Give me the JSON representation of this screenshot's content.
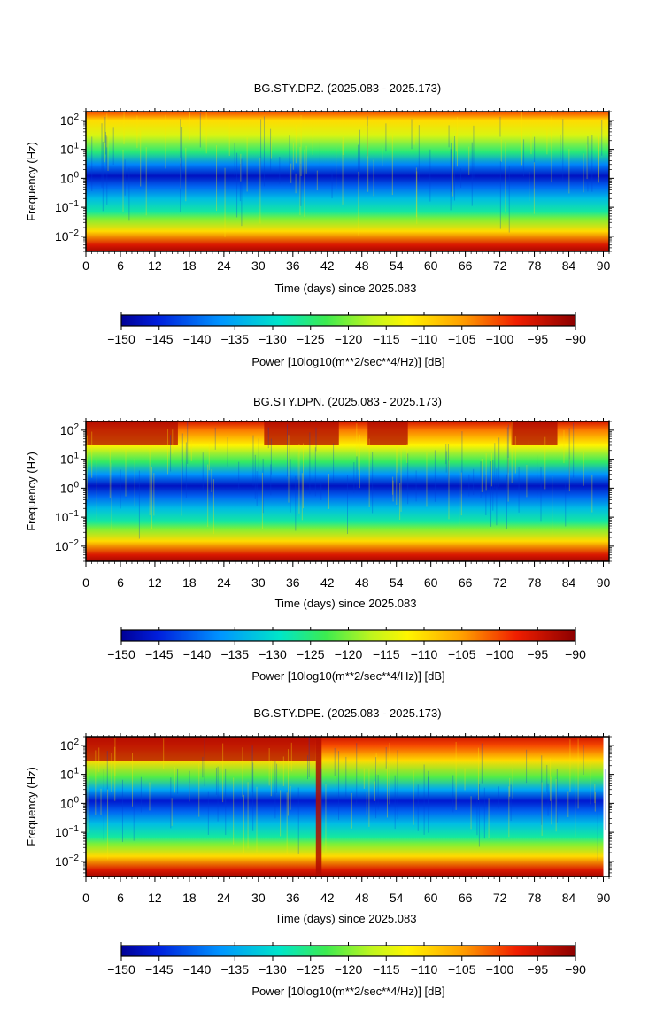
{
  "chart_data": [
    {
      "type": "heatmap",
      "title": "BG.STY.DPZ. (2025.083 - 2025.173)",
      "xlabel": "Time (days) since 2025.083",
      "ylabel": "Frequency (Hz)",
      "x_ticks": [
        "0",
        "6",
        "12",
        "18",
        "24",
        "30",
        "36",
        "42",
        "48",
        "54",
        "60",
        "66",
        "72",
        "78",
        "84",
        "90"
      ],
      "xlim": [
        0,
        91
      ],
      "y_scale": "log",
      "ylim": [
        0.003,
        200
      ],
      "y_tick_labels": [
        {
          "base": "10",
          "exp": "2"
        },
        {
          "base": "10",
          "exp": "1"
        },
        {
          "base": "10",
          "exp": "0"
        },
        {
          "base": "10",
          "exp": "−1"
        },
        {
          "base": "10",
          "exp": "−2"
        }
      ],
      "y_tick_values": [
        100,
        10,
        1,
        0.1,
        0.01
      ],
      "colorbar": {
        "label": "Power [10log10(m**2/sec**4/Hz)] [dB]",
        "range": [
          -150,
          -90
        ],
        "tick_labels": [
          "−150",
          "−145",
          "−140",
          "−135",
          "−130",
          "−125",
          "−120",
          "−115",
          "−110",
          "−105",
          "−100",
          "−95",
          "−90"
        ]
      },
      "psd_profile_db": [
        {
          "hz": 200,
          "db": -100
        },
        {
          "hz": 100,
          "db": -110
        },
        {
          "hz": 30,
          "db": -115
        },
        {
          "hz": 8,
          "db": -125
        },
        {
          "hz": 3,
          "db": -138
        },
        {
          "hz": 1.2,
          "db": -147
        },
        {
          "hz": 0.5,
          "db": -140
        },
        {
          "hz": 0.2,
          "db": -133
        },
        {
          "hz": 0.07,
          "db": -127
        },
        {
          "hz": 0.04,
          "db": -120
        },
        {
          "hz": 0.015,
          "db": -110
        },
        {
          "hz": 0.005,
          "db": -96
        },
        {
          "hz": 0.003,
          "db": -92
        }
      ],
      "high_noise_day_ranges": []
    },
    {
      "type": "heatmap",
      "title": "BG.STY.DPN. (2025.083 - 2025.173)",
      "xlabel": "Time (days) since 2025.083",
      "ylabel": "Frequency (Hz)",
      "x_ticks": [
        "0",
        "6",
        "12",
        "18",
        "24",
        "30",
        "36",
        "42",
        "48",
        "54",
        "60",
        "66",
        "72",
        "78",
        "84",
        "90"
      ],
      "xlim": [
        0,
        91
      ],
      "y_scale": "log",
      "ylim": [
        0.003,
        200
      ],
      "y_tick_labels": [
        {
          "base": "10",
          "exp": "2"
        },
        {
          "base": "10",
          "exp": "1"
        },
        {
          "base": "10",
          "exp": "0"
        },
        {
          "base": "10",
          "exp": "−1"
        },
        {
          "base": "10",
          "exp": "−2"
        }
      ],
      "y_tick_values": [
        100,
        10,
        1,
        0.1,
        0.01
      ],
      "colorbar": {
        "label": "Power [10log10(m**2/sec**4/Hz)] [dB]",
        "range": [
          -150,
          -90
        ],
        "tick_labels": [
          "−150",
          "−145",
          "−140",
          "−135",
          "−130",
          "−125",
          "−120",
          "−115",
          "−110",
          "−105",
          "−100",
          "−95",
          "−90"
        ]
      },
      "psd_profile_db": [
        {
          "hz": 200,
          "db": -96
        },
        {
          "hz": 100,
          "db": -103
        },
        {
          "hz": 30,
          "db": -112
        },
        {
          "hz": 8,
          "db": -124
        },
        {
          "hz": 3,
          "db": -137
        },
        {
          "hz": 1.2,
          "db": -147
        },
        {
          "hz": 0.5,
          "db": -140
        },
        {
          "hz": 0.2,
          "db": -133
        },
        {
          "hz": 0.07,
          "db": -127
        },
        {
          "hz": 0.04,
          "db": -120
        },
        {
          "hz": 0.015,
          "db": -110
        },
        {
          "hz": 0.005,
          "db": -96
        },
        {
          "hz": 0.003,
          "db": -92
        }
      ],
      "high_noise_day_ranges": [
        [
          0,
          16
        ],
        [
          31,
          44
        ],
        [
          49,
          56
        ],
        [
          74,
          82
        ]
      ]
    },
    {
      "type": "heatmap",
      "title": "BG.STY.DPE. (2025.083 - 2025.173)",
      "xlabel": "Time (days) since 2025.083",
      "ylabel": "Frequency (Hz)",
      "x_ticks": [
        "0",
        "6",
        "12",
        "18",
        "24",
        "30",
        "36",
        "42",
        "48",
        "54",
        "60",
        "66",
        "72",
        "78",
        "84",
        "90"
      ],
      "xlim": [
        0,
        91
      ],
      "y_scale": "log",
      "ylim": [
        0.003,
        200
      ],
      "y_tick_labels": [
        {
          "base": "10",
          "exp": "2"
        },
        {
          "base": "10",
          "exp": "1"
        },
        {
          "base": "10",
          "exp": "0"
        },
        {
          "base": "10",
          "exp": "−1"
        },
        {
          "base": "10",
          "exp": "−2"
        }
      ],
      "y_tick_values": [
        100,
        10,
        1,
        0.1,
        0.01
      ],
      "colorbar": {
        "label": "Power [10log10(m**2/sec**4/Hz)] [dB]",
        "range": [
          -150,
          -90
        ],
        "tick_labels": [
          "−150",
          "−145",
          "−140",
          "−135",
          "−130",
          "−125",
          "−120",
          "−115",
          "−110",
          "−105",
          "−100",
          "−95",
          "−90"
        ]
      },
      "psd_profile_db": [
        {
          "hz": 200,
          "db": -95
        },
        {
          "hz": 100,
          "db": -100
        },
        {
          "hz": 30,
          "db": -110
        },
        {
          "hz": 8,
          "db": -122
        },
        {
          "hz": 3,
          "db": -135
        },
        {
          "hz": 1.2,
          "db": -146
        },
        {
          "hz": 0.5,
          "db": -140
        },
        {
          "hz": 0.2,
          "db": -133
        },
        {
          "hz": 0.07,
          "db": -127
        },
        {
          "hz": 0.04,
          "db": -120
        },
        {
          "hz": 0.015,
          "db": -110
        },
        {
          "hz": 0.005,
          "db": -96
        },
        {
          "hz": 0.003,
          "db": -92
        }
      ],
      "high_noise_day_ranges": [
        [
          0,
          40
        ],
        [
          40,
          41
        ]
      ],
      "data_gap_day_ranges": [
        [
          90,
          91
        ]
      ]
    }
  ]
}
